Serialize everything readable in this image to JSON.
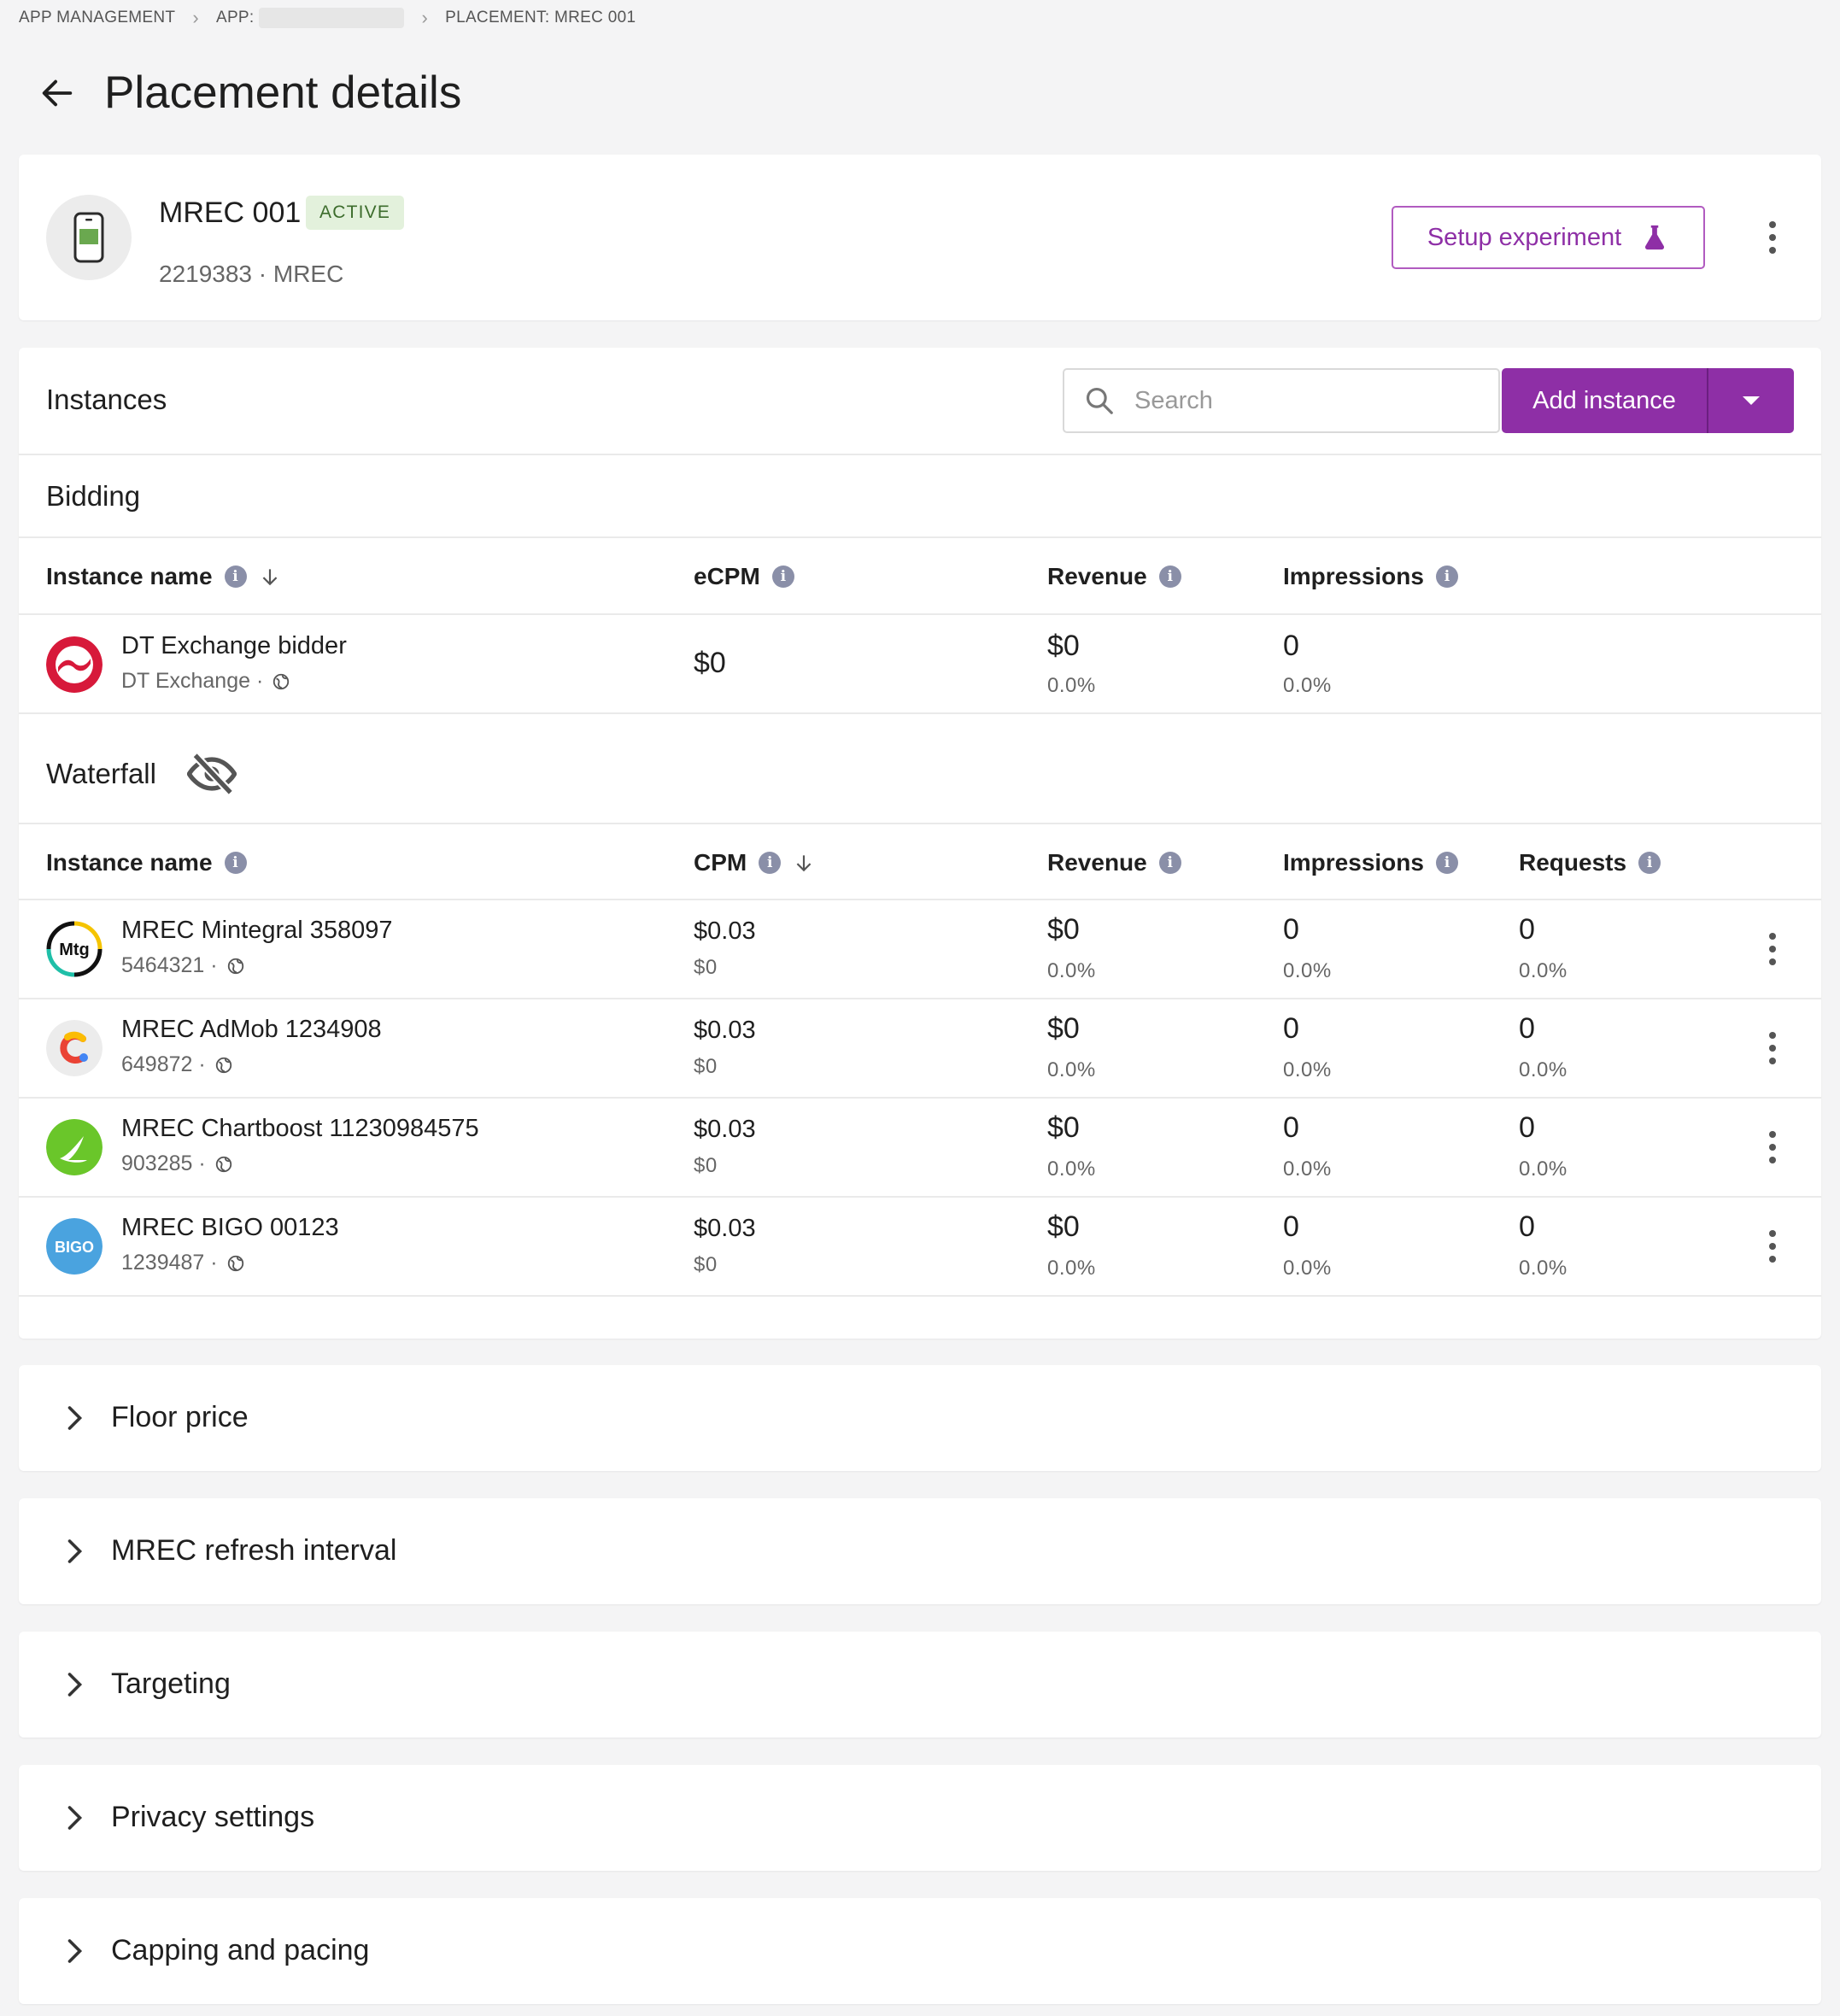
{
  "breadcrumb": {
    "item1": "APP MANAGEMENT",
    "item2": "APP:",
    "item3": "PLACEMENT: MREC 001"
  },
  "page": {
    "title": "Placement details"
  },
  "placement": {
    "name": "MREC 001",
    "status": "ACTIVE",
    "subtitle": "2219383 · MREC",
    "setup_button": "Setup experiment"
  },
  "instances": {
    "title": "Instances",
    "search_placeholder": "Search",
    "add_button": "Add instance",
    "bidding": {
      "title": "Bidding",
      "columns": [
        "Instance name",
        "eCPM",
        "Revenue",
        "Impressions"
      ],
      "rows": [
        {
          "name": "DT Exchange bidder",
          "sub": "DT Exchange ·",
          "ecpm": "$0",
          "revenue": "$0",
          "revenue_pct": "0.0%",
          "impressions": "0",
          "impressions_pct": "0.0%"
        }
      ]
    },
    "waterfall": {
      "title": "Waterfall",
      "columns": [
        "Instance name",
        "CPM",
        "Revenue",
        "Impressions",
        "Requests"
      ],
      "rows": [
        {
          "name": "MREC Mintegral 358097",
          "sub": "5464321 ·",
          "cpm": "$0.03",
          "cpm_sub": "$0",
          "revenue": "$0",
          "revenue_pct": "0.0%",
          "impressions": "0",
          "impressions_pct": "0.0%",
          "requests": "0",
          "requests_pct": "0.0%"
        },
        {
          "name": "MREC AdMob 1234908",
          "sub": "649872 ·",
          "cpm": "$0.03",
          "cpm_sub": "$0",
          "revenue": "$0",
          "revenue_pct": "0.0%",
          "impressions": "0",
          "impressions_pct": "0.0%",
          "requests": "0",
          "requests_pct": "0.0%"
        },
        {
          "name": "MREC Chartboost 11230984575",
          "sub": "903285 ·",
          "cpm": "$0.03",
          "cpm_sub": "$0",
          "revenue": "$0",
          "revenue_pct": "0.0%",
          "impressions": "0",
          "impressions_pct": "0.0%",
          "requests": "0",
          "requests_pct": "0.0%"
        },
        {
          "name": "MREC BIGO 00123",
          "sub": "1239487 ·",
          "cpm": "$0.03",
          "cpm_sub": "$0",
          "revenue": "$0",
          "revenue_pct": "0.0%",
          "impressions": "0",
          "impressions_pct": "0.0%",
          "requests": "0",
          "requests_pct": "0.0%"
        }
      ]
    }
  },
  "logos": {
    "mintegral": "Mtg",
    "bigo": "BIGO"
  },
  "sections": [
    "Floor price",
    "MREC refresh interval",
    "Targeting",
    "Privacy settings",
    "Capping and pacing"
  ],
  "colors": {
    "accent": "#8e2fa6",
    "active_badge_bg": "#e3f1dc",
    "active_badge_text": "#3c6c2c"
  }
}
